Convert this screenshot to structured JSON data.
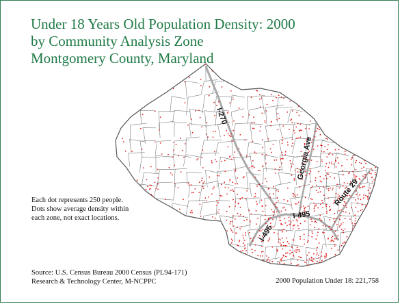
{
  "title": {
    "lines": [
      "Under 18 Years Old Population Density: 2000",
      "by Community Analysis Zone",
      "Montgomery County, Maryland"
    ]
  },
  "note": {
    "lines": [
      "Each dot represents 250 people.",
      "Dots show average density within",
      "each zone, not exact locations."
    ]
  },
  "source": {
    "lines": [
      "Source: U.S. Census Bureau 2000 Census (PL94-171)",
      "Research & Technology Center, M-NCPPC"
    ]
  },
  "population_total": "2000 Population Under 18:  221,758",
  "road_labels": {
    "i270": "I-270",
    "georgia": "Georgia Ave",
    "route29": "Route 29",
    "i495_east": "I-495",
    "i495_west": "I-495"
  },
  "colors": {
    "title": "#1f7a45",
    "frame": "#2e7d4f",
    "dot": "#e02020",
    "boundary": "#7a7a7a",
    "road": "#a8a8a8"
  },
  "legend": {
    "dot_value": 250
  }
}
